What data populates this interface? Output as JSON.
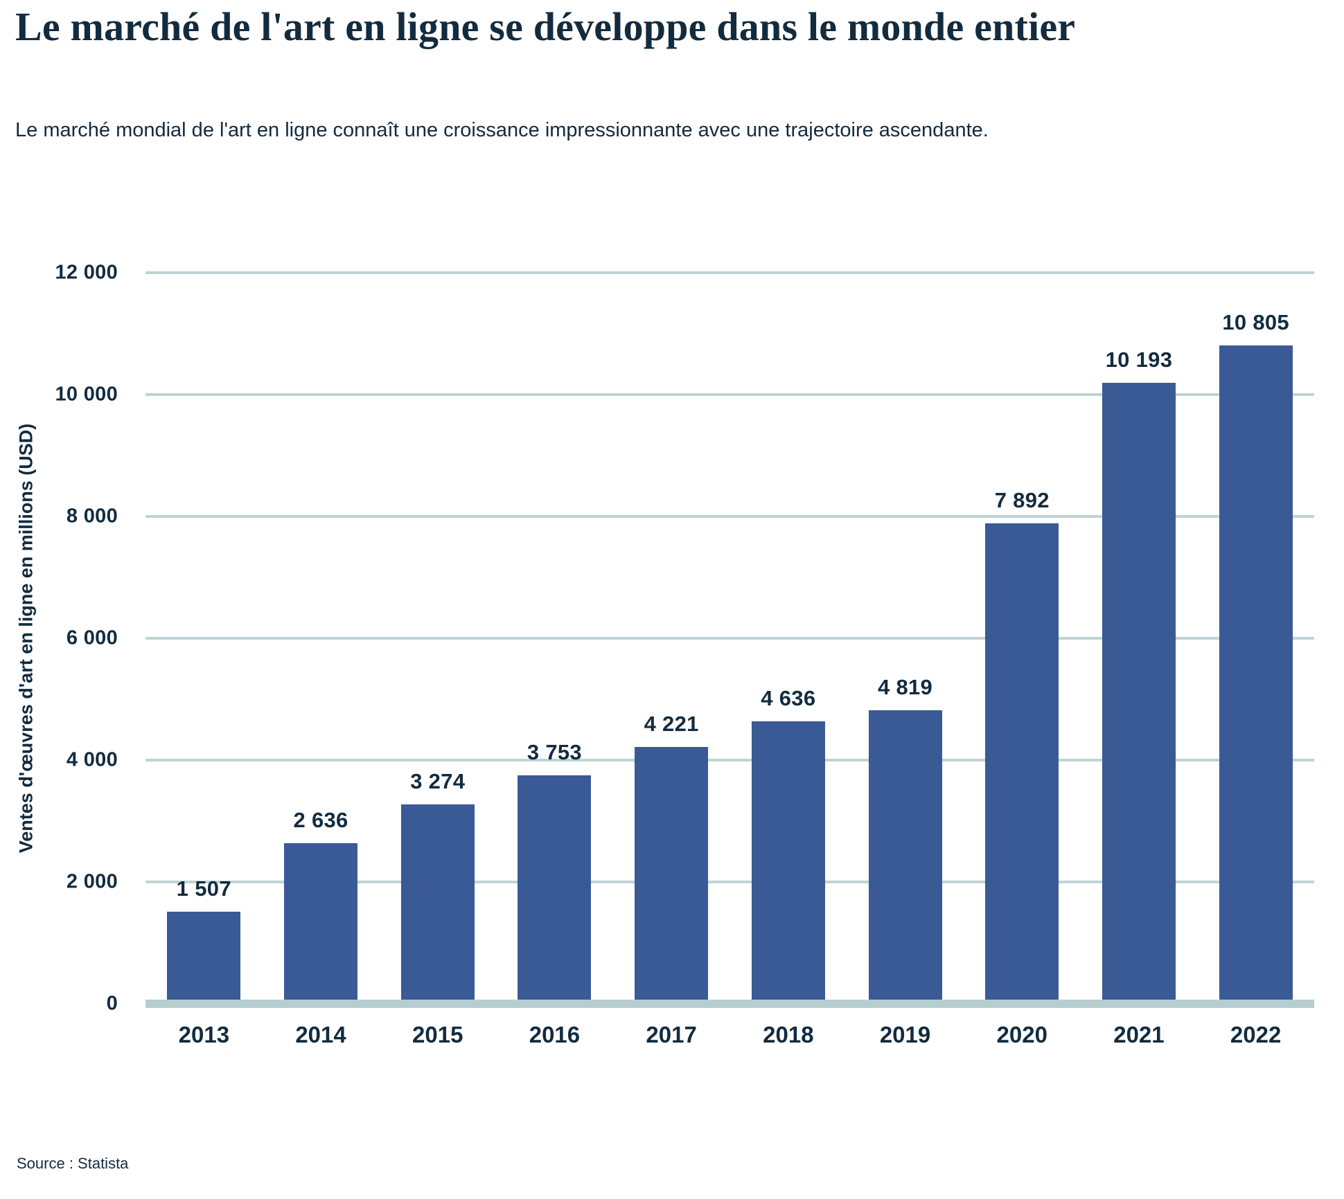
{
  "header": {
    "title": "Le marché de l'art en ligne se développe dans le monde entier",
    "subtitle": "Le marché mondial de l'art en ligne connaît une croissance impressionnante avec une trajectoire ascendante."
  },
  "chart_data": {
    "type": "bar",
    "title": "Le marché de l'art en ligne se développe dans le monde entier",
    "subtitle": "Le marché mondial de l'art en ligne connaît une croissance impressionnante avec une trajectoire ascendante.",
    "categories": [
      "2013",
      "2014",
      "2015",
      "2016",
      "2017",
      "2018",
      "2019",
      "2020",
      "2021",
      "2022"
    ],
    "values": [
      1507,
      2636,
      3274,
      3753,
      4221,
      4636,
      4819,
      7892,
      10193,
      10805
    ],
    "value_labels": [
      "1 507",
      "2 636",
      "3 274",
      "3 753",
      "4 221",
      "4 636",
      "4 819",
      "7 892",
      "10 193",
      "10 805"
    ],
    "xlabel": "",
    "ylabel": "Ventes d'œuvres d'art en ligne en millions (USD)",
    "ylim": [
      0,
      12000
    ],
    "ytick_interval": 2000,
    "yticks": [
      0,
      2000,
      4000,
      6000,
      8000,
      10000,
      12000
    ],
    "ytick_labels": [
      "0",
      "2 000",
      "4 000",
      "6 000",
      "8 000",
      "10 000",
      "12 000"
    ],
    "grid": "horizontal-only",
    "legend": "none",
    "bar_color": "#3A5A96",
    "gridline_color": "#BFD3D5",
    "baseline_color": "#B7CED1",
    "text_color": "#122B3F"
  },
  "theme": {
    "background": "#FFFFFF",
    "text": "#122B3F",
    "bar": "#3A5A96",
    "gridline": "#BFD3D5",
    "baseline": "#B7CED1"
  },
  "footer": {
    "source": "Source : Statista"
  }
}
